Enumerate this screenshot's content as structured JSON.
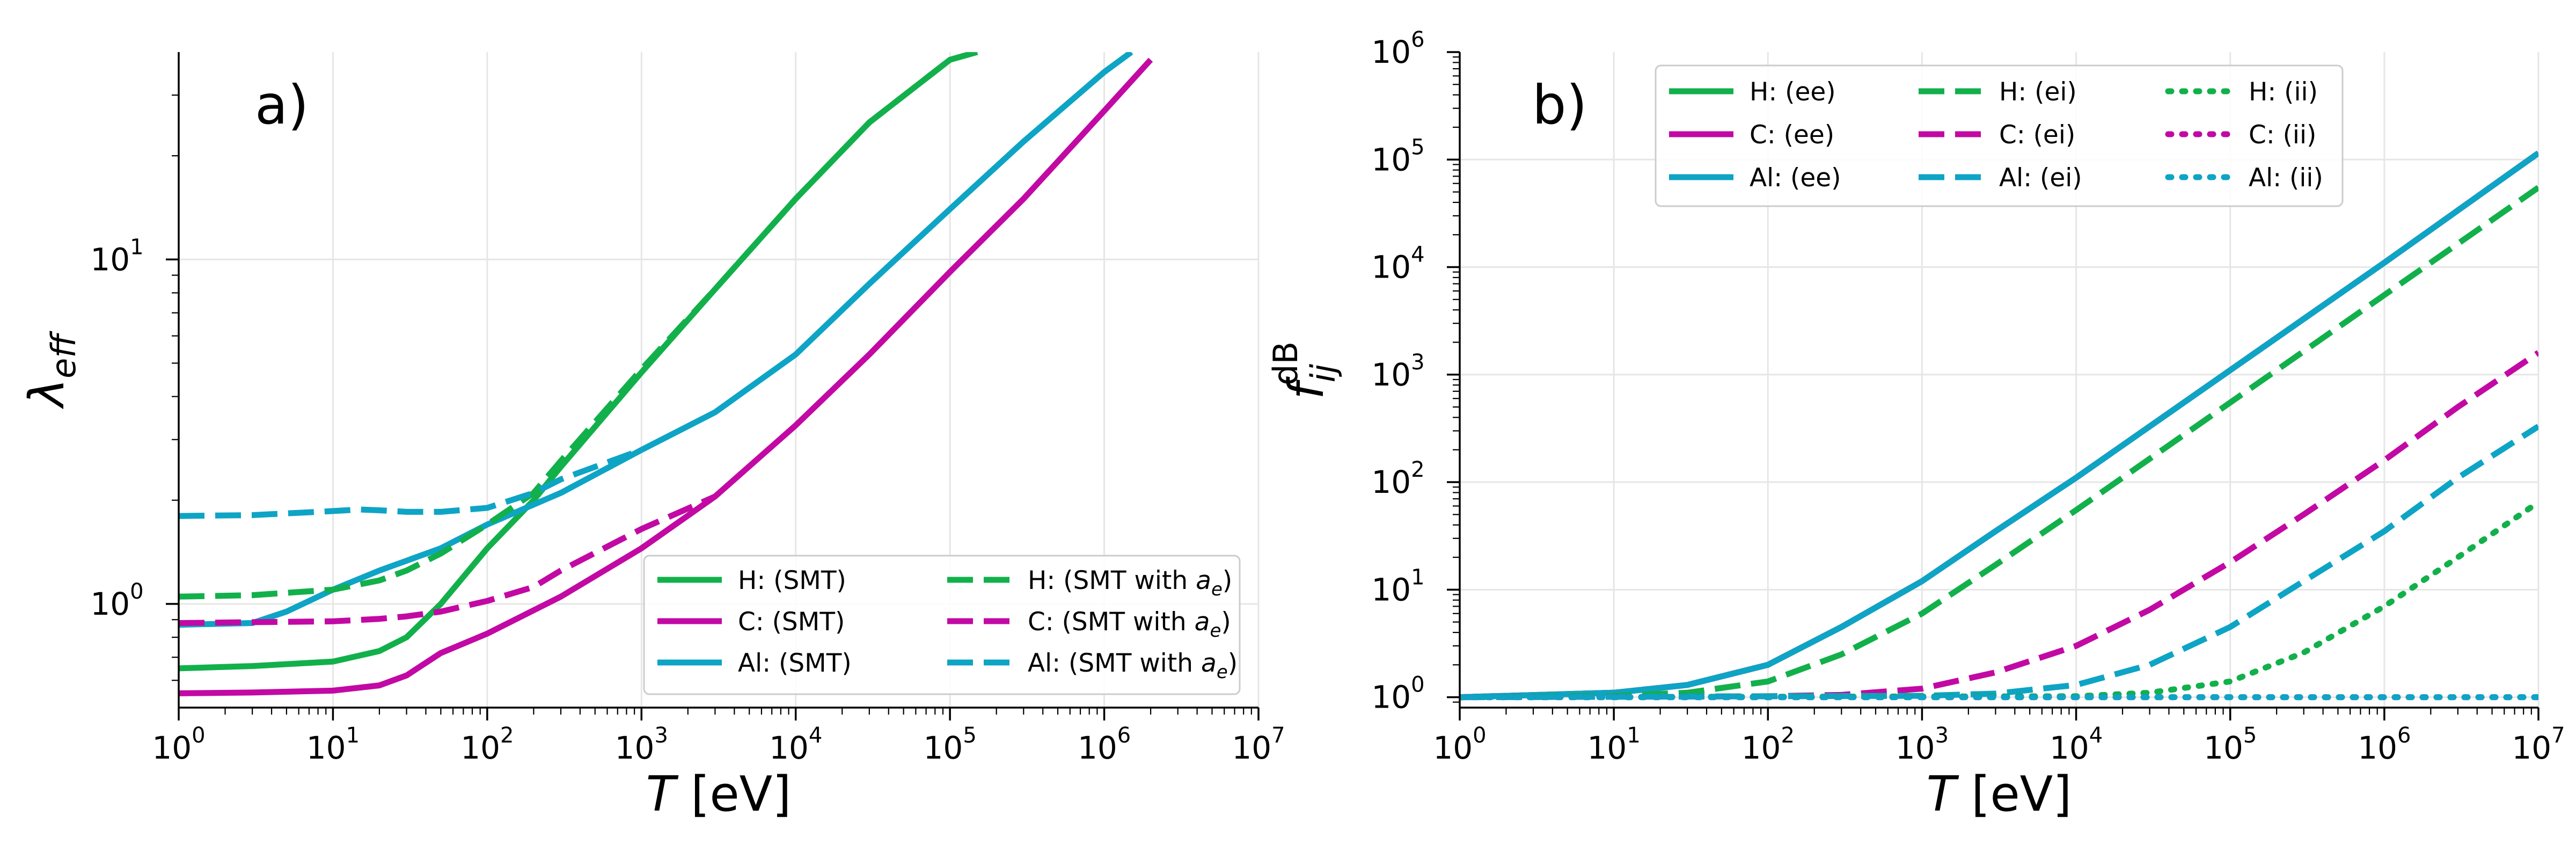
{
  "colors": {
    "H": "#12b04b",
    "C": "#c209a4",
    "Al": "#0ea4c5"
  },
  "chart_data": [
    {
      "panel": "a)",
      "type": "line",
      "xlabel": "T [eV]",
      "ylabel": "λeff",
      "xscale": "log",
      "yscale": "log",
      "xlim": [
        1,
        10000000
      ],
      "ylim": [
        0.5,
        40
      ],
      "x_tick_labels": [
        "10^0",
        "10^1",
        "10^2",
        "10^3",
        "10^4",
        "10^5",
        "10^6",
        "10^7"
      ],
      "y_tick_labels": [
        "10^0",
        "10^1"
      ],
      "legend_position": "lower-right",
      "legend_columns": 2,
      "grid": true,
      "series": [
        {
          "name": "H: (SMT)",
          "element": "H",
          "style": "solid",
          "x": [
            1,
            3,
            10,
            20,
            30,
            50,
            100,
            200,
            300,
            1000,
            3000,
            10000,
            30000,
            100000,
            150000
          ],
          "y": [
            0.65,
            0.66,
            0.68,
            0.73,
            0.8,
            1.0,
            1.45,
            2.0,
            2.5,
            4.7,
            8.2,
            15,
            25,
            38,
            40
          ]
        },
        {
          "name": "C: (SMT)",
          "element": "C",
          "style": "solid",
          "x": [
            1,
            3,
            10,
            20,
            30,
            50,
            100,
            300,
            1000,
            3000,
            10000,
            30000,
            100000,
            300000,
            1000000,
            2000000
          ],
          "y": [
            0.55,
            0.553,
            0.56,
            0.58,
            0.62,
            0.72,
            0.82,
            1.05,
            1.45,
            2.05,
            3.3,
            5.3,
            9.2,
            15,
            27,
            38
          ]
        },
        {
          "name": "Al: (SMT)",
          "element": "Al",
          "style": "solid",
          "x": [
            1,
            3,
            5,
            10,
            20,
            50,
            100,
            300,
            1000,
            3000,
            10000,
            30000,
            100000,
            300000,
            1000000,
            1500000
          ],
          "y": [
            0.87,
            0.88,
            0.95,
            1.1,
            1.25,
            1.45,
            1.7,
            2.1,
            2.8,
            3.6,
            5.3,
            8.5,
            14,
            22,
            35,
            40
          ]
        },
        {
          "name": "H: (SMT with a_e)",
          "element": "H",
          "style": "dashed",
          "x": [
            1,
            3,
            10,
            20,
            30,
            50,
            100,
            200,
            300,
            1000,
            3000,
            10000,
            30000,
            100000,
            150000
          ],
          "y": [
            1.05,
            1.06,
            1.1,
            1.17,
            1.25,
            1.4,
            1.7,
            2.1,
            2.6,
            4.8,
            8.2,
            15,
            25,
            38,
            40
          ]
        },
        {
          "name": "C: (SMT with a_e)",
          "element": "C",
          "style": "dashed",
          "x": [
            1,
            3,
            10,
            20,
            30,
            50,
            100,
            200,
            300,
            1000,
            3000
          ],
          "y": [
            0.88,
            0.885,
            0.89,
            0.905,
            0.92,
            0.95,
            1.02,
            1.12,
            1.25,
            1.65,
            2.05
          ]
        },
        {
          "name": "Al: (SMT with a_e)",
          "element": "Al",
          "style": "dashed",
          "x": [
            1,
            3,
            10,
            15,
            20,
            30,
            50,
            100,
            200,
            300,
            1000
          ],
          "y": [
            1.8,
            1.81,
            1.86,
            1.88,
            1.87,
            1.85,
            1.85,
            1.9,
            2.1,
            2.3,
            2.8
          ]
        }
      ]
    },
    {
      "panel": "b)",
      "type": "line",
      "xlabel": "T [eV]",
      "ylabel": "f_ij^dB",
      "xscale": "log",
      "yscale": "log",
      "xlim": [
        1,
        10000000
      ],
      "ylim": [
        0.8,
        1000000
      ],
      "x_tick_labels": [
        "10^0",
        "10^1",
        "10^2",
        "10^3",
        "10^4",
        "10^5",
        "10^6",
        "10^7"
      ],
      "y_tick_labels": [
        "10^0",
        "10^1",
        "10^2",
        "10^3",
        "10^4",
        "10^5",
        "10^6"
      ],
      "legend_position": "upper-center",
      "legend_columns": 3,
      "grid": true,
      "series": [
        {
          "name": "H: (ee)",
          "element": "H",
          "style": "solid",
          "x": [
            1,
            10,
            30,
            100,
            300,
            1000,
            3000,
            10000,
            100000,
            1000000,
            10000000
          ],
          "y": [
            1.0,
            1.1,
            1.3,
            2.0,
            4.5,
            12,
            35,
            110,
            1100,
            11000,
            115000
          ]
        },
        {
          "name": "C: (ee)",
          "element": "C",
          "style": "solid",
          "x": [
            1,
            10,
            30,
            100,
            300,
            1000,
            3000,
            10000,
            100000,
            1000000,
            10000000
          ],
          "y": [
            1.0,
            1.1,
            1.3,
            2.0,
            4.5,
            12,
            35,
            110,
            1100,
            11000,
            115000
          ]
        },
        {
          "name": "Al: (ee)",
          "element": "Al",
          "style": "solid",
          "x": [
            1,
            10,
            30,
            100,
            300,
            1000,
            3000,
            10000,
            100000,
            1000000,
            10000000
          ],
          "y": [
            1.0,
            1.1,
            1.3,
            2.0,
            4.5,
            12,
            35,
            110,
            1100,
            11000,
            115000
          ]
        },
        {
          "name": "H: (ei)",
          "element": "H",
          "style": "dashed",
          "x": [
            1,
            10,
            30,
            100,
            300,
            1000,
            3000,
            10000,
            100000,
            1000000,
            10000000
          ],
          "y": [
            1.0,
            1.03,
            1.1,
            1.4,
            2.5,
            6.0,
            17,
            55,
            550,
            5500,
            55000
          ]
        },
        {
          "name": "C: (ei)",
          "element": "C",
          "style": "dashed",
          "x": [
            1,
            100,
            300,
            1000,
            3000,
            10000,
            30000,
            100000,
            300000,
            1000000,
            3000000,
            10000000
          ],
          "y": [
            1.0,
            1.02,
            1.05,
            1.2,
            1.7,
            3.0,
            6.5,
            18,
            50,
            160,
            500,
            1600
          ]
        },
        {
          "name": "Al: (ei)",
          "element": "Al",
          "style": "dashed",
          "x": [
            1,
            1000,
            3000,
            10000,
            30000,
            100000,
            300000,
            1000000,
            3000000,
            10000000
          ],
          "y": [
            1.0,
            1.03,
            1.08,
            1.3,
            2.0,
            4.5,
            12,
            35,
            110,
            330
          ]
        },
        {
          "name": "H: (ii)",
          "element": "H",
          "style": "dotted",
          "x": [
            1,
            10000,
            30000,
            100000,
            300000,
            1000000,
            3000000,
            10000000
          ],
          "y": [
            1.0,
            1.02,
            1.1,
            1.4,
            2.6,
            7.0,
            20,
            65
          ]
        },
        {
          "name": "C: (ii)",
          "element": "C",
          "style": "dotted",
          "x": [
            1,
            10000000
          ],
          "y": [
            1.0,
            1.0
          ]
        },
        {
          "name": "Al: (ii)",
          "element": "Al",
          "style": "dotted",
          "x": [
            1,
            10000000
          ],
          "y": [
            1.0,
            1.0
          ]
        }
      ]
    }
  ]
}
